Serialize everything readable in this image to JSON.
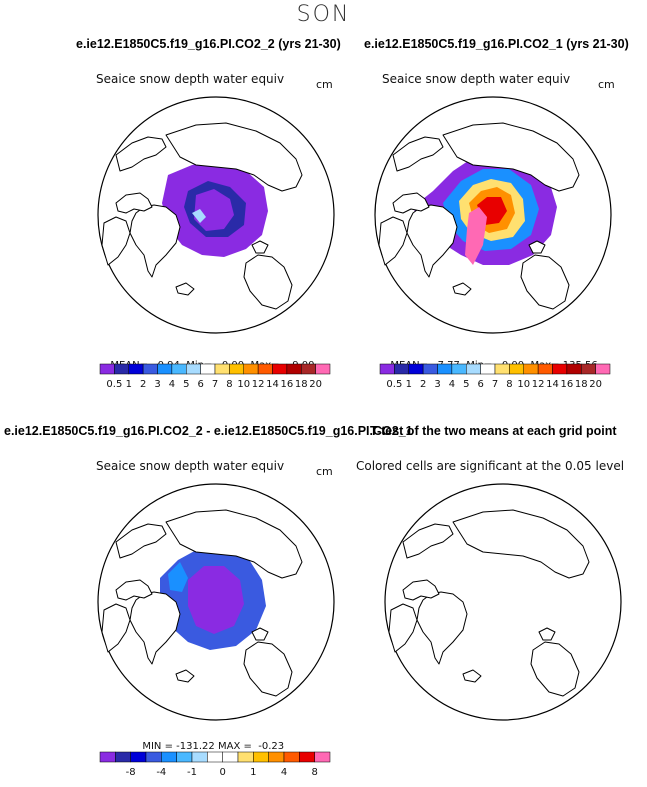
{
  "season": "SON",
  "top_titles": {
    "left": "e.ie12.E1850C5.f19_g16.PI.CO2_2 (yrs 21-30)",
    "right": "e.ie12.E1850C5.f19_g16.PI.CO2_1 (yrs 21-30)"
  },
  "diff_title": "e.ie12.E1850C5.f19_g16.PI.CO2_2 - e.ie12.E1850C5.f19_g16.PI.CO2_1",
  "ttest_title": "T-test of the two means at each grid point",
  "panels": {
    "p1": {
      "title": "Seaice snow depth water equiv",
      "units": "cm",
      "mean_label": "MEAN=",
      "mean": "0.94",
      "min_label": "Min=",
      "min": "0.00",
      "max_label": "Max=",
      "max": "9.00"
    },
    "p2": {
      "title": "Seaice snow depth water equiv",
      "units": "cm",
      "mean_label": "MEAN=",
      "mean": "7.77",
      "min_label": "Min=",
      "min": "0.00",
      "max_label": "Max=",
      "max": "135.56"
    },
    "p3": {
      "title": "Seaice snow depth water equiv",
      "units": "cm",
      "min_label": "MIN =",
      "min": "-131.22",
      "max_label": "MAX =",
      "max": "-0.23"
    },
    "p4": {
      "title": "Colored cells are significant at the 0.05 level"
    }
  },
  "colorbar_abs": {
    "colors": [
      "#8a2be2",
      "#2a2aa8",
      "#0000d8",
      "#3a5ae0",
      "#1a90ff",
      "#4ab8ff",
      "#a8dcff",
      "#ffffff",
      "#ffe070",
      "#ffc000",
      "#ff9000",
      "#ff5a00",
      "#e80000",
      "#b00000",
      "#a82828",
      "#ff69b4"
    ],
    "labels": [
      "0.5",
      "1",
      "2",
      "3",
      "4",
      "5",
      "6",
      "7",
      "8",
      "10",
      "12",
      "14",
      "16",
      "18",
      "20"
    ]
  },
  "colorbar_diff": {
    "colors": [
      "#8a2be2",
      "#2a2aa8",
      "#0000d8",
      "#3a5ae0",
      "#1a90ff",
      "#4ab8ff",
      "#a8dcff",
      "#ffffff",
      "#ffffff",
      "#ffe070",
      "#ffc000",
      "#ff9000",
      "#ff5a00",
      "#e80000",
      "#ff69b4"
    ],
    "labels": [
      "-8",
      "-4",
      "-1",
      "0",
      "1",
      "4",
      "8"
    ]
  }
}
